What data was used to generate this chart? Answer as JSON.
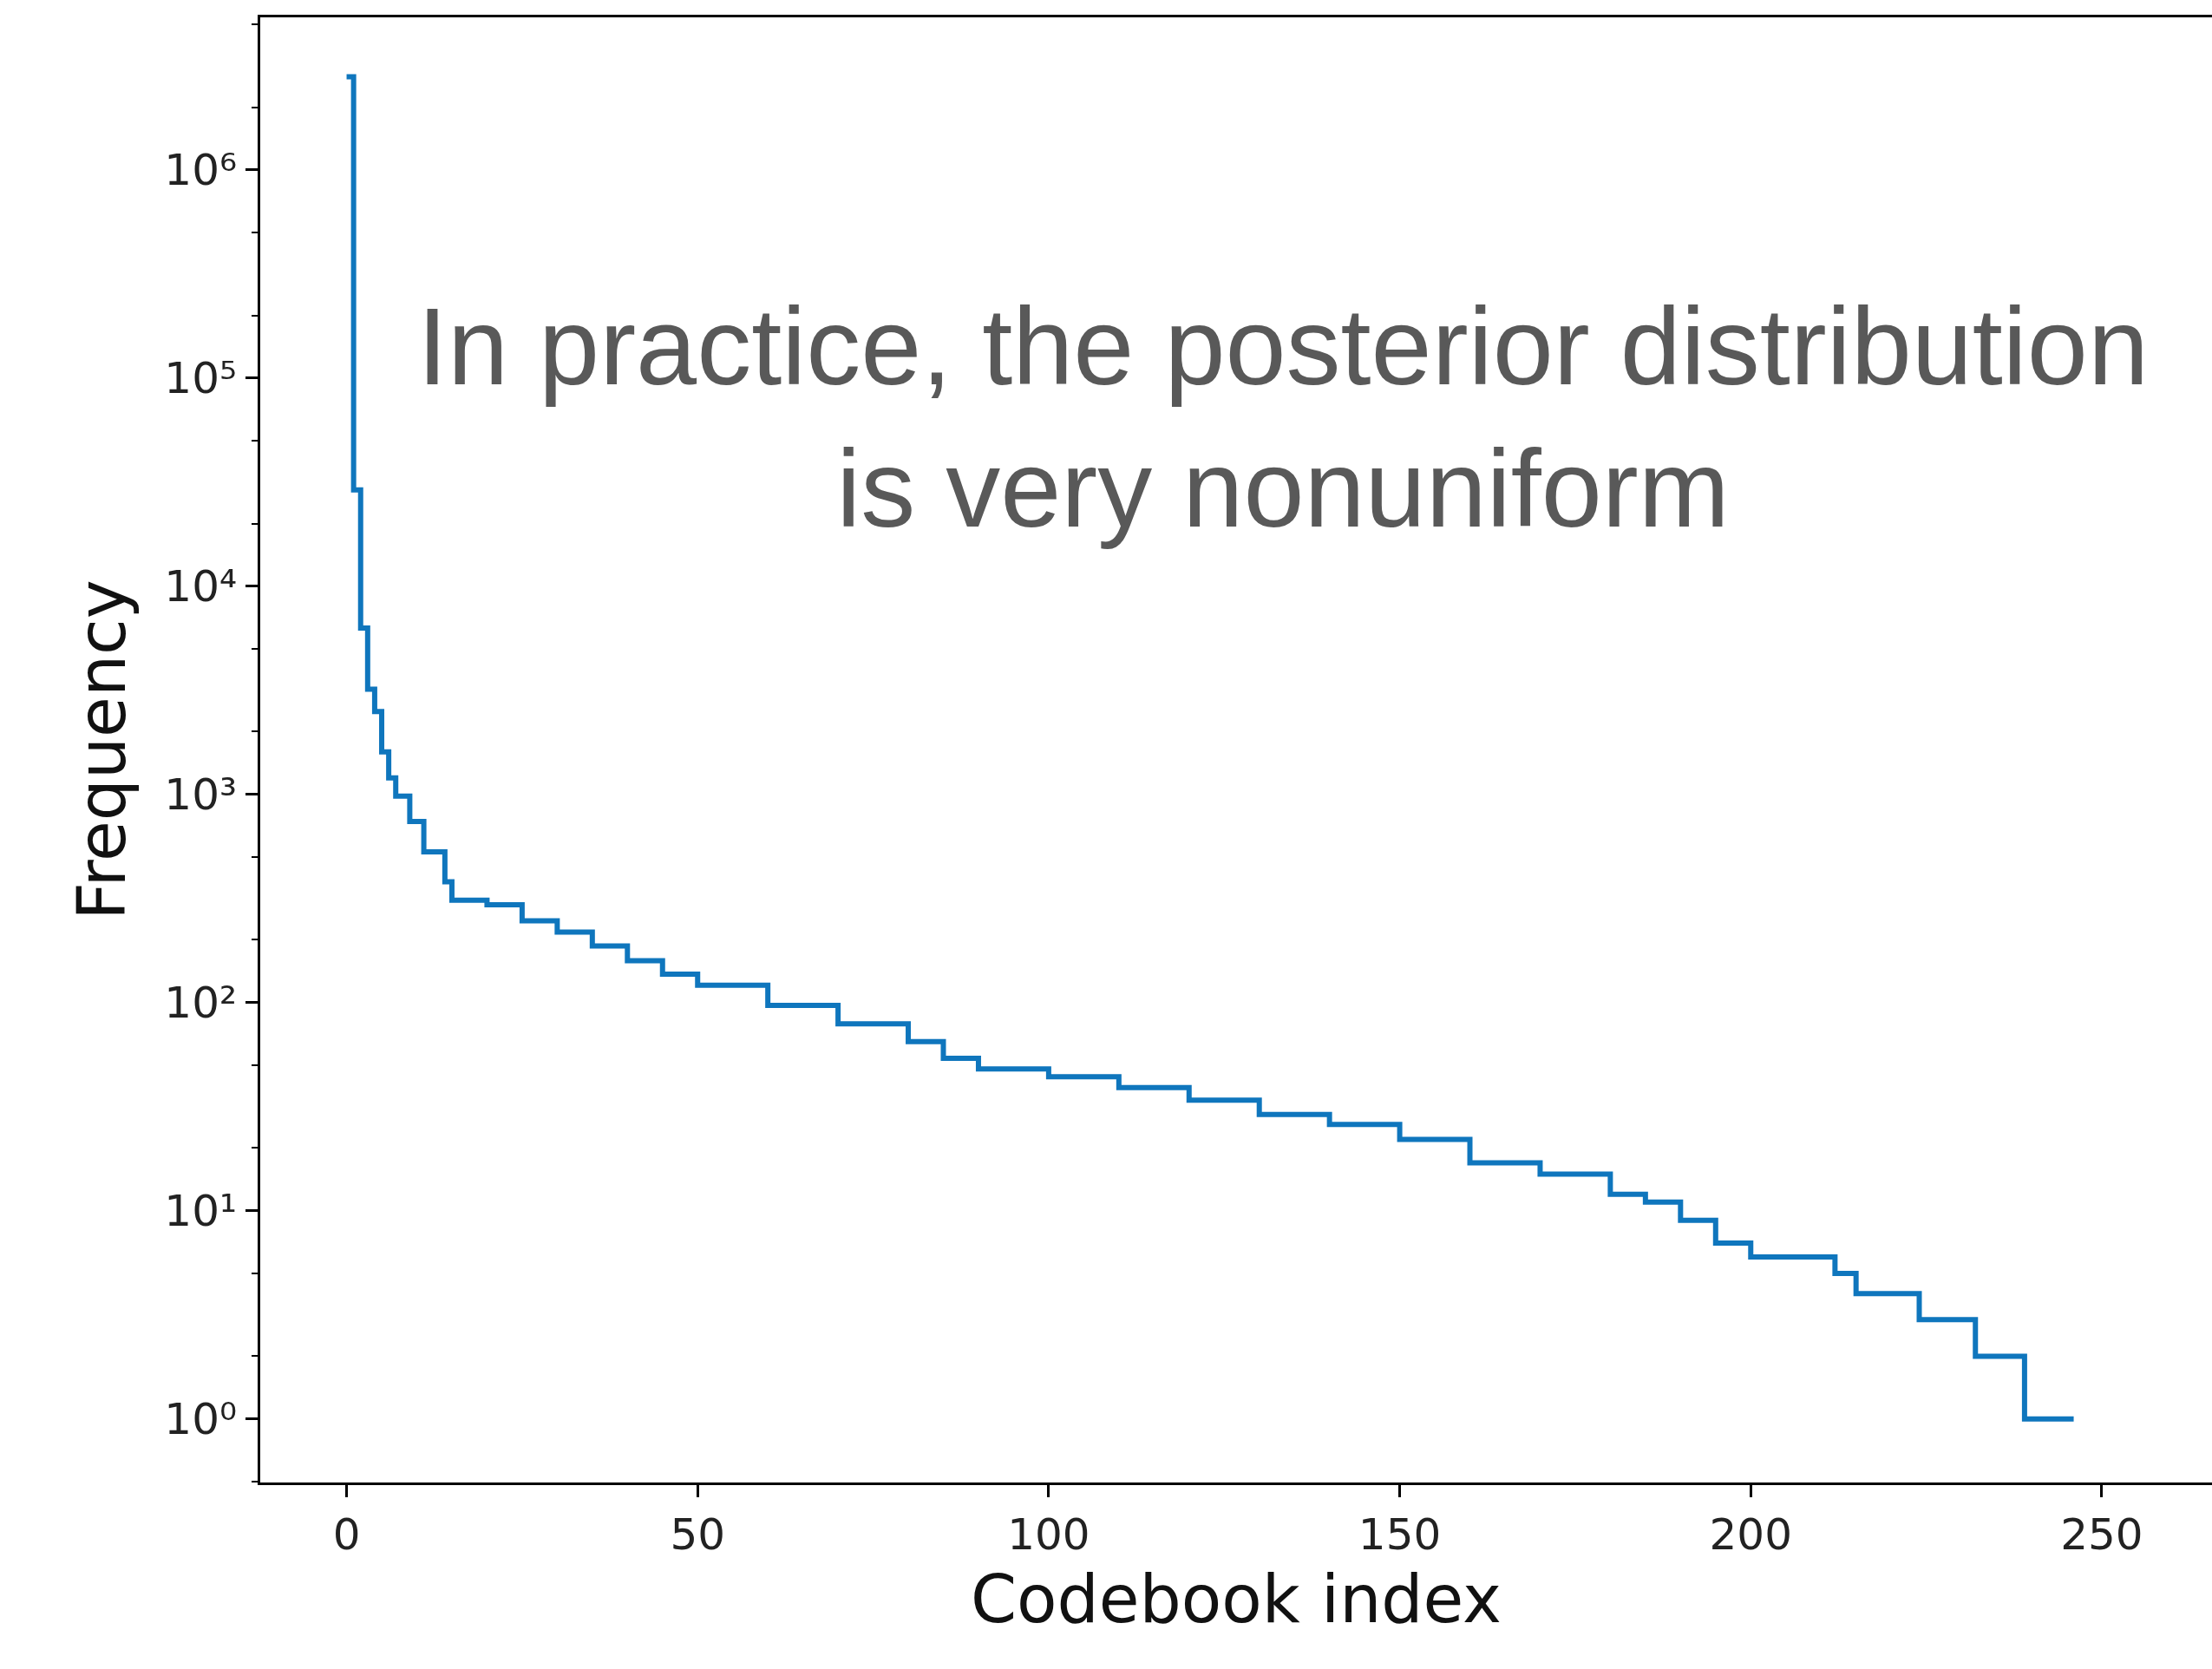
{
  "chart_data": {
    "type": "step",
    "xlabel": "Codebook index",
    "ylabel": "Frequency",
    "annotations": [
      "In practice, the posterior distribution\nis very nonuniform"
    ],
    "x": [
      0,
      1,
      2,
      3,
      4,
      5,
      6,
      7,
      9,
      11,
      14,
      15,
      20,
      25,
      30,
      35,
      40,
      45,
      50,
      60,
      70,
      80,
      85,
      90,
      100,
      110,
      120,
      130,
      140,
      150,
      160,
      170,
      180,
      185,
      190,
      195,
      200,
      212,
      215,
      224,
      232,
      239,
      246
    ],
    "series": [
      {
        "color": "#0f76bd",
        "values": [
          2800000,
          29000,
          6300,
          3200,
          2500,
          1600,
          1200,
          980,
          740,
          530,
          380,
          310,
          295,
          247,
          218,
          187,
          159,
          137,
          121,
          97,
          79,
          65,
          54,
          48,
          44,
          39,
          34,
          29,
          26,
          22,
          17,
          15,
          12,
          11,
          9,
          7,
          6,
          5,
          4,
          3,
          2,
          1,
          1
        ]
      }
    ],
    "log": "y",
    "xlim": [
      -12.3,
      265.7
    ],
    "ylim": [
      0.495,
      5400000
    ],
    "xticks": [
      0,
      50,
      100,
      150,
      200,
      250
    ],
    "yticks": [
      {
        "value": 1,
        "label": "10⁰"
      },
      {
        "value": 10,
        "label": "10¹"
      },
      {
        "value": 100,
        "label": "10²"
      },
      {
        "value": 1000,
        "label": "10³"
      },
      {
        "value": 10000,
        "label": "10⁴"
      },
      {
        "value": 100000,
        "label": "10⁵"
      },
      {
        "value": 1000000,
        "label": "10⁶"
      }
    ],
    "marker": "none"
  }
}
